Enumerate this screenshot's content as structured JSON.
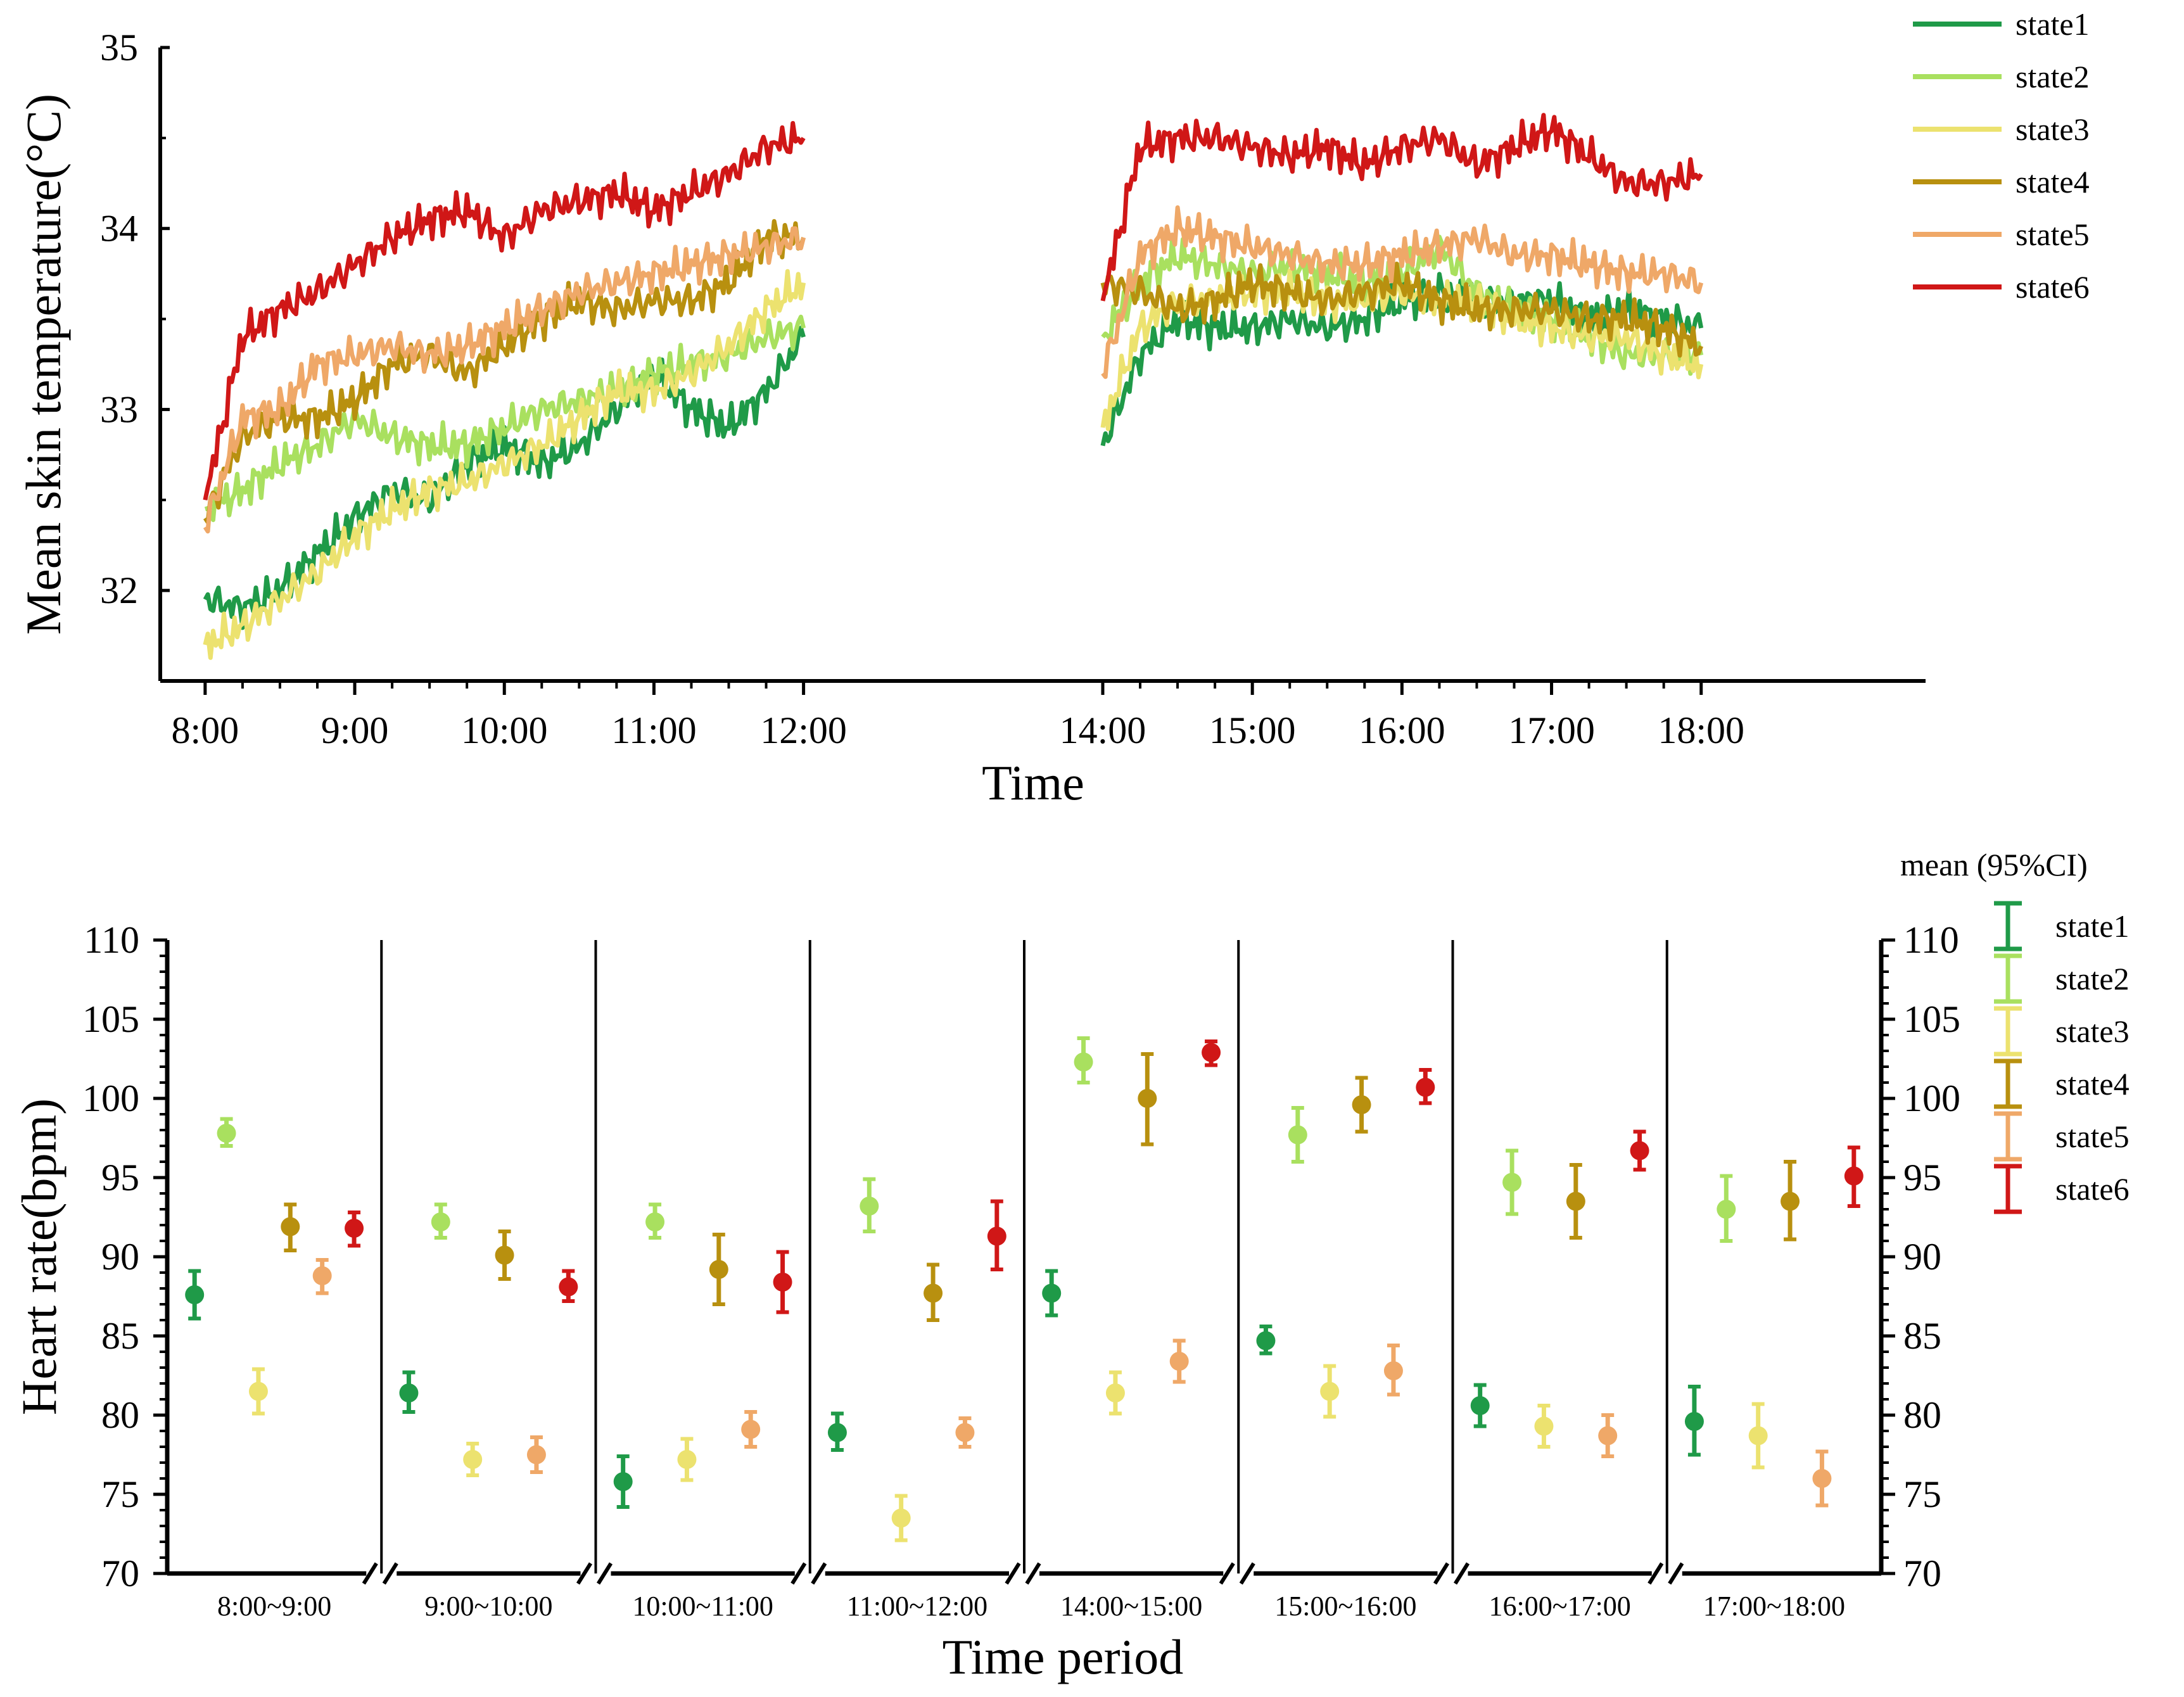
{
  "chart_data": [
    {
      "type": "line",
      "title": "",
      "xlabel": "Time",
      "ylabel": "Mean skin temperature(°C)",
      "ylim": [
        31.5,
        35
      ],
      "xlim": [
        7.7,
        19.5
      ],
      "x_ticks": [
        "8:00",
        "9:00",
        "10:00",
        "11:00",
        "12:00",
        "14:00",
        "15:00",
        "16:00",
        "17:00",
        "18:00"
      ],
      "y_ticks": [
        "32",
        "33",
        "34",
        "35"
      ],
      "gap": [
        12,
        14
      ],
      "legend": {
        "position": "top-right"
      },
      "series": [
        {
          "name": "state1",
          "color": "#1f9a48",
          "x": [
            8.0,
            8.25,
            8.5,
            8.75,
            9.0,
            9.25,
            9.5,
            9.75,
            10.0,
            10.25,
            10.5,
            10.75,
            11.0,
            11.25,
            11.5,
            11.75,
            12.0,
            14.0,
            14.25,
            14.5,
            14.75,
            15.0,
            15.25,
            15.5,
            15.75,
            16.0,
            16.25,
            16.5,
            16.75,
            17.0,
            17.25,
            17.5,
            17.75,
            18.0
          ],
          "y": [
            31.95,
            31.9,
            32.0,
            32.2,
            32.4,
            32.55,
            32.5,
            32.7,
            32.8,
            32.7,
            32.8,
            33.0,
            33.2,
            33.0,
            32.9,
            33.1,
            33.4,
            32.8,
            33.3,
            33.5,
            33.45,
            33.45,
            33.5,
            33.45,
            33.5,
            33.6,
            33.65,
            33.6,
            33.6,
            33.6,
            33.5,
            33.55,
            33.5,
            33.45
          ]
        },
        {
          "name": "state2",
          "color": "#a9e05f",
          "x": [
            8.0,
            8.25,
            8.5,
            8.75,
            9.0,
            9.25,
            9.5,
            9.75,
            10.0,
            10.25,
            10.5,
            10.75,
            11.0,
            11.25,
            11.5,
            11.75,
            12.0,
            14.0,
            14.25,
            14.5,
            14.75,
            15.0,
            15.25,
            15.5,
            15.75,
            16.0,
            16.25,
            16.5,
            16.75,
            17.0,
            17.25,
            17.5,
            17.75,
            18.0
          ],
          "y": [
            32.45,
            32.55,
            32.7,
            32.8,
            32.95,
            32.85,
            32.8,
            32.8,
            32.9,
            33.0,
            33.05,
            33.1,
            33.2,
            33.25,
            33.3,
            33.4,
            33.45,
            33.4,
            33.7,
            33.85,
            33.8,
            33.75,
            33.8,
            33.75,
            33.7,
            33.75,
            33.9,
            33.65,
            33.55,
            33.5,
            33.4,
            33.3,
            33.3,
            33.3
          ]
        },
        {
          "name": "state3",
          "color": "#ece26f",
          "x": [
            8.0,
            8.25,
            8.5,
            8.75,
            9.0,
            9.25,
            9.5,
            9.75,
            10.0,
            10.25,
            10.5,
            10.75,
            11.0,
            11.25,
            11.5,
            11.75,
            12.0,
            14.0,
            14.25,
            14.5,
            14.75,
            15.0,
            15.25,
            15.5,
            15.75,
            16.0,
            16.25,
            16.5,
            16.75,
            17.0,
            17.25,
            17.5,
            17.75,
            18.0
          ],
          "y": [
            31.7,
            31.8,
            31.95,
            32.1,
            32.3,
            32.45,
            32.55,
            32.6,
            32.7,
            32.8,
            32.95,
            33.1,
            33.1,
            33.2,
            33.35,
            33.55,
            33.7,
            32.9,
            33.45,
            33.6,
            33.6,
            33.65,
            33.65,
            33.6,
            33.6,
            33.65,
            33.6,
            33.6,
            33.5,
            33.45,
            33.4,
            33.4,
            33.3,
            33.25
          ]
        },
        {
          "name": "state4",
          "color": "#b8900f",
          "x": [
            8.0,
            8.25,
            8.5,
            8.75,
            9.0,
            9.25,
            9.5,
            9.75,
            10.0,
            10.25,
            10.5,
            10.75,
            11.0,
            11.25,
            11.5,
            11.75,
            12.0,
            14.0,
            14.25,
            14.5,
            14.75,
            15.0,
            15.25,
            15.5,
            15.75,
            16.0,
            16.25,
            16.5,
            16.75,
            17.0,
            17.25,
            17.5,
            17.75,
            18.0
          ],
          "y": [
            32.4,
            32.85,
            32.95,
            32.95,
            33.05,
            33.25,
            33.3,
            33.2,
            33.35,
            33.5,
            33.6,
            33.55,
            33.6,
            33.6,
            33.7,
            33.95,
            33.95,
            33.7,
            33.65,
            33.55,
            33.6,
            33.7,
            33.65,
            33.6,
            33.65,
            33.7,
            33.6,
            33.55,
            33.55,
            33.55,
            33.5,
            33.5,
            33.45,
            33.35
          ]
        },
        {
          "name": "state5",
          "color": "#efa868",
          "x": [
            8.0,
            8.25,
            8.5,
            8.75,
            9.0,
            9.25,
            9.5,
            9.75,
            10.0,
            10.25,
            10.5,
            10.75,
            11.0,
            11.25,
            11.5,
            11.75,
            12.0,
            14.0,
            14.25,
            14.5,
            14.75,
            15.0,
            15.25,
            15.5,
            15.75,
            16.0,
            16.25,
            16.5,
            16.75,
            17.0,
            17.25,
            17.5,
            17.75,
            18.0
          ],
          "y": [
            32.35,
            32.95,
            33.0,
            33.25,
            33.3,
            33.35,
            33.3,
            33.35,
            33.45,
            33.55,
            33.65,
            33.7,
            33.75,
            33.8,
            33.85,
            33.9,
            33.95,
            33.2,
            33.85,
            34.0,
            33.95,
            33.9,
            33.85,
            33.8,
            33.8,
            33.85,
            33.9,
            33.95,
            33.85,
            33.85,
            33.8,
            33.75,
            33.75,
            33.7
          ]
        },
        {
          "name": "state6",
          "color": "#d01717",
          "x": [
            8.0,
            8.25,
            8.5,
            8.75,
            9.0,
            9.25,
            9.5,
            9.75,
            10.0,
            10.25,
            10.5,
            10.75,
            11.0,
            11.25,
            11.5,
            11.75,
            12.0,
            14.0,
            14.25,
            14.5,
            14.75,
            15.0,
            15.25,
            15.5,
            15.75,
            16.0,
            16.25,
            16.5,
            16.75,
            17.0,
            17.25,
            17.5,
            17.75,
            18.0
          ],
          "y": [
            32.5,
            33.4,
            33.55,
            33.65,
            33.8,
            33.95,
            34.05,
            34.1,
            33.95,
            34.1,
            34.15,
            34.2,
            34.1,
            34.2,
            34.3,
            34.45,
            34.5,
            33.6,
            34.45,
            34.5,
            34.5,
            34.45,
            34.4,
            34.45,
            34.35,
            34.45,
            34.5,
            34.35,
            34.45,
            34.55,
            34.4,
            34.25,
            34.25,
            34.3
          ]
        }
      ]
    },
    {
      "type": "scatter",
      "title": "",
      "subtitle": "mean (95%CI)",
      "xlabel": "Time period",
      "ylabel": "Heart rate(bpm)",
      "ylim": [
        70,
        110
      ],
      "y_ticks": [
        "70",
        "75",
        "80",
        "85",
        "90",
        "95",
        "100",
        "105",
        "110"
      ],
      "categories": [
        "8:00~9:00",
        "9:00~10:00",
        "10:00~11:00",
        "11:00~12:00",
        "14:00~15:00",
        "15:00~16:00",
        "16:00~17:00",
        "17:00~18:00"
      ],
      "legend": {
        "position": "right"
      },
      "series": [
        {
          "name": "state1",
          "color": "#1f9a48",
          "values": [
            87.6,
            81.4,
            75.8,
            78.9,
            87.7,
            84.7,
            80.6,
            79.6
          ],
          "lower": [
            86.1,
            80.2,
            74.2,
            77.8,
            86.3,
            83.9,
            79.3,
            77.5
          ],
          "upper": [
            89.1,
            82.7,
            77.4,
            80.1,
            89.1,
            85.6,
            81.9,
            81.8
          ]
        },
        {
          "name": "state2",
          "color": "#a9e05f",
          "values": [
            97.8,
            92.2,
            92.2,
            93.2,
            102.3,
            97.7,
            94.7,
            93.0
          ],
          "lower": [
            97.0,
            91.2,
            91.2,
            91.6,
            101.0,
            96.0,
            92.7,
            91.0
          ],
          "upper": [
            98.7,
            93.3,
            93.3,
            94.9,
            103.8,
            99.4,
            96.7,
            95.1
          ]
        },
        {
          "name": "state3",
          "color": "#ece26f",
          "values": [
            81.5,
            77.2,
            77.2,
            73.5,
            81.4,
            81.5,
            79.3,
            78.7
          ],
          "lower": [
            80.1,
            76.2,
            75.9,
            72.1,
            80.1,
            79.9,
            78.0,
            76.7
          ],
          "upper": [
            82.9,
            78.2,
            78.5,
            74.9,
            82.7,
            83.1,
            80.6,
            80.7
          ]
        },
        {
          "name": "state4",
          "color": "#b8900f",
          "values": [
            91.9,
            90.1,
            89.2,
            87.7,
            100.0,
            99.6,
            93.5,
            93.5
          ],
          "lower": [
            90.4,
            88.6,
            87.0,
            86.0,
            97.1,
            97.9,
            91.2,
            91.1
          ],
          "upper": [
            93.3,
            91.6,
            91.4,
            89.5,
            102.8,
            101.3,
            95.8,
            96.0
          ]
        },
        {
          "name": "state5",
          "color": "#efa868",
          "values": [
            88.8,
            77.5,
            79.1,
            78.9,
            83.4,
            82.8,
            78.7,
            76.0
          ],
          "lower": [
            87.7,
            76.4,
            78.0,
            78.0,
            82.1,
            81.3,
            77.4,
            74.3
          ],
          "upper": [
            89.8,
            78.6,
            80.2,
            79.8,
            84.7,
            84.4,
            80.0,
            77.7
          ]
        },
        {
          "name": "state6",
          "color": "#d01717",
          "values": [
            91.8,
            88.1,
            88.4,
            91.3,
            102.9,
            100.7,
            96.7,
            95.1
          ],
          "lower": [
            90.7,
            87.2,
            86.5,
            89.2,
            102.1,
            99.7,
            95.5,
            93.2
          ],
          "upper": [
            92.8,
            89.1,
            90.3,
            93.5,
            103.6,
            101.8,
            97.9,
            96.9
          ]
        }
      ]
    }
  ]
}
